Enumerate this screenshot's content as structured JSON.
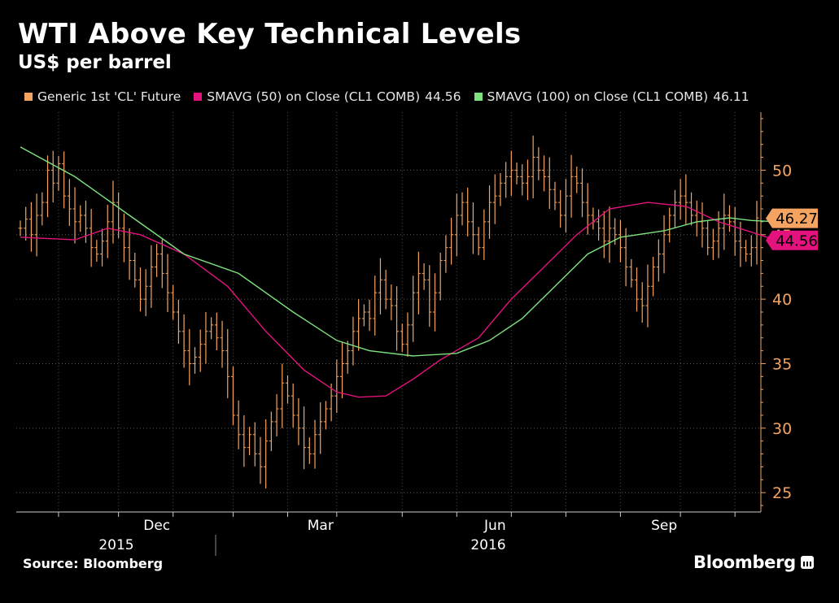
{
  "chart_data": {
    "type": "line",
    "title": "WTI Above Key Technical Levels",
    "subtitle": "US$ per barrel",
    "source": "Source: Bloomberg",
    "brand": "Bloomberg",
    "ylim": [
      23.5,
      54.5
    ],
    "yticks": [
      25,
      30,
      35,
      40,
      45,
      50
    ],
    "xticks": [
      "Dec",
      "Mar",
      "Jun",
      "Sep"
    ],
    "years": [
      "2015",
      "2016"
    ],
    "grid": true,
    "legend_position": "top",
    "series": [
      {
        "name": "Generic 1st 'CL' Future",
        "color": "#f4a460",
        "style": "ohlc-bars",
        "last_value_label": "46.27",
        "close": [
          45.5,
          46.2,
          45.0,
          46.5,
          47.5,
          50.0,
          49.0,
          50.5,
          48.0,
          47.0,
          46.0,
          46.5,
          45.5,
          44.0,
          43.5,
          44.5,
          46.0,
          47.5,
          45.5,
          44.0,
          43.0,
          41.5,
          40.0,
          41.0,
          42.5,
          43.5,
          42.0,
          40.5,
          39.0,
          37.5,
          36.0,
          35.0,
          35.5,
          36.5,
          37.5,
          38.0,
          37.0,
          36.0,
          34.0,
          31.0,
          29.5,
          28.5,
          29.5,
          28.0,
          27.0,
          29.0,
          30.5,
          31.5,
          33.5,
          32.5,
          31.0,
          30.0,
          28.5,
          28.0,
          29.5,
          30.5,
          31.5,
          32.5,
          34.0,
          35.0,
          36.0,
          37.5,
          38.5,
          39.0,
          38.5,
          40.5,
          41.5,
          40.0,
          39.5,
          37.5,
          36.5,
          38.0,
          40.5,
          42.0,
          41.5,
          39.0,
          40.5,
          43.0,
          44.0,
          45.0,
          46.5,
          47.5,
          46.0,
          45.0,
          44.0,
          46.0,
          47.5,
          48.0,
          49.0,
          49.5,
          50.0,
          49.5,
          49.0,
          49.5,
          51.0,
          50.0,
          49.5,
          48.5,
          47.5,
          46.5,
          48.0,
          49.5,
          49.0,
          47.5,
          46.5,
          46.0,
          45.5,
          44.5,
          45.5,
          45.0,
          44.0,
          42.5,
          41.5,
          40.0,
          39.5,
          41.0,
          42.5,
          43.5,
          45.0,
          46.5,
          47.5,
          48.0,
          47.5,
          46.5,
          46.0,
          45.5,
          44.0,
          44.5,
          45.5,
          46.5,
          46.0,
          44.5,
          44.0,
          43.5,
          44.0,
          46.3
        ]
      },
      {
        "name": "SMAVG (50) on Close (CL1 COMB)",
        "legend_value": "44.56",
        "color": "#e3127d",
        "style": "line",
        "last_value_label": "44.56",
        "points": [
          [
            0,
            44.8
          ],
          [
            10,
            44.6
          ],
          [
            16,
            45.5
          ],
          [
            22,
            45.0
          ],
          [
            30,
            43.5
          ],
          [
            38,
            41.0
          ],
          [
            45,
            37.5
          ],
          [
            52,
            34.5
          ],
          [
            58,
            32.8
          ],
          [
            62,
            32.4
          ],
          [
            67,
            32.5
          ],
          [
            72,
            33.8
          ],
          [
            77,
            35.3
          ],
          [
            84,
            37.0
          ],
          [
            90,
            40.0
          ],
          [
            96,
            42.5
          ],
          [
            102,
            45.0
          ],
          [
            108,
            47.0
          ],
          [
            115,
            47.5
          ],
          [
            122,
            47.2
          ],
          [
            128,
            46.0
          ],
          [
            134,
            45.2
          ],
          [
            139,
            44.5
          ]
        ]
      },
      {
        "name": "SMAVG (100) on Close (CL1 COMB)",
        "legend_value": "46.11",
        "color": "#7ee37e",
        "style": "line",
        "last_value_label": "46.11",
        "points": [
          [
            0,
            51.8
          ],
          [
            10,
            49.5
          ],
          [
            20,
            46.5
          ],
          [
            30,
            43.5
          ],
          [
            40,
            42.0
          ],
          [
            50,
            39.0
          ],
          [
            58,
            36.8
          ],
          [
            64,
            36.0
          ],
          [
            72,
            35.6
          ],
          [
            80,
            35.8
          ],
          [
            86,
            36.8
          ],
          [
            92,
            38.5
          ],
          [
            98,
            41.0
          ],
          [
            104,
            43.5
          ],
          [
            110,
            44.8
          ],
          [
            118,
            45.3
          ],
          [
            124,
            46.0
          ],
          [
            130,
            46.3
          ],
          [
            134,
            46.1
          ],
          [
            139,
            46.0
          ]
        ]
      }
    ],
    "last_value_label_colors": {
      "close": "#f4a460",
      "sma50": "#e3127d"
    }
  }
}
